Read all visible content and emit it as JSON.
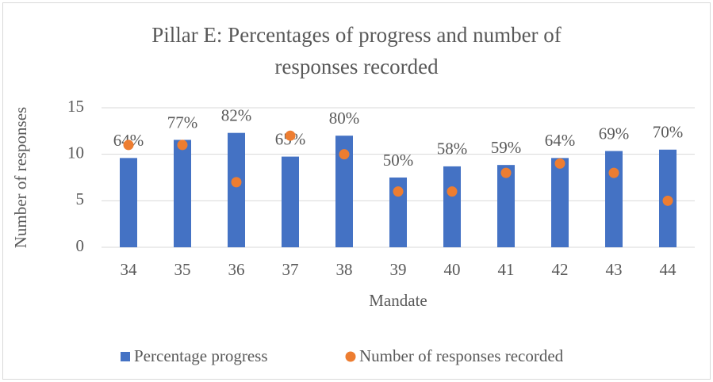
{
  "chart_data": {
    "type": "bar",
    "title": "Pillar E: Percentages of progress and number of responses recorded",
    "x_label": "Mandate",
    "y_label": "Number of responses",
    "categories": [
      "34",
      "35",
      "36",
      "37",
      "38",
      "39",
      "40",
      "41",
      "42",
      "43",
      "44"
    ],
    "ylim": [
      0,
      15
    ],
    "yticks": [
      0,
      5,
      10,
      15
    ],
    "y2lim": [
      0,
      100
    ],
    "grid": true,
    "legend": "bottom",
    "series": [
      {
        "name": "Percentage progress",
        "type": "bar",
        "color": "#4472c4",
        "axis": "y2",
        "values": [
          64,
          77,
          82,
          65,
          80,
          50,
          58,
          59,
          64,
          69,
          70
        ],
        "value_labels": [
          "64%",
          "77%",
          "82%",
          "65%",
          "80%",
          "50%",
          "58%",
          "59%",
          "64%",
          "69%",
          "70%"
        ]
      },
      {
        "name": "Number of responses recorded",
        "type": "scatter",
        "color": "#ed7d31",
        "values": [
          11,
          11,
          7,
          12,
          10,
          6,
          6,
          8,
          9,
          8,
          5
        ]
      }
    ]
  }
}
